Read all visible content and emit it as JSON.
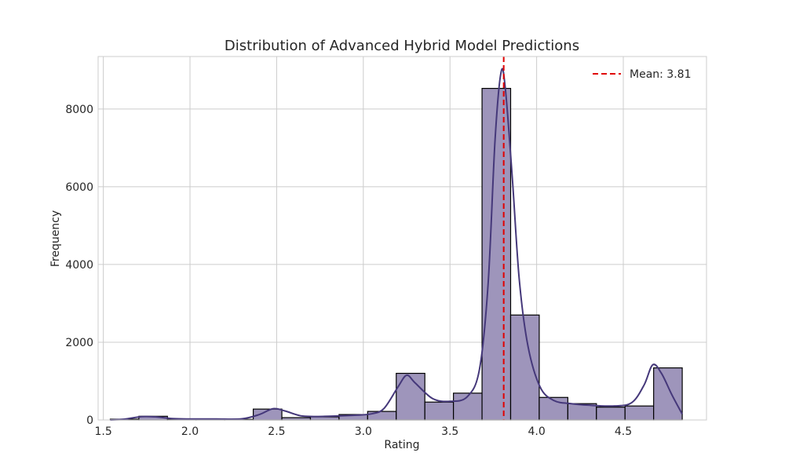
{
  "chart_data": {
    "type": "bar",
    "title": "Distribution of Advanced Hybrid Model Predictions",
    "xlabel": "Rating",
    "ylabel": "Frequency",
    "xlim": [
      1.47,
      4.98
    ],
    "ylim": [
      0,
      9350
    ],
    "xticks": [
      1.5,
      2.0,
      2.5,
      3.0,
      3.5,
      4.0,
      4.5
    ],
    "xtick_labels": [
      "1.5",
      "2.0",
      "2.5",
      "3.0",
      "3.5",
      "4.0",
      "4.5"
    ],
    "yticks": [
      0,
      2000,
      4000,
      6000,
      8000
    ],
    "ytick_labels": [
      "0",
      "2000",
      "4000",
      "6000",
      "8000"
    ],
    "grid": true,
    "legend_position": "top-right",
    "colors": {
      "bar_fill": "#9e95bb",
      "bar_edge": "#000000",
      "kde_line": "#45387a",
      "mean_line": "#e00000",
      "grid": "#cccccc",
      "spine": "#cccccc"
    },
    "bins": [
      {
        "start": 1.54,
        "end": 1.705,
        "count": 20
      },
      {
        "start": 1.705,
        "end": 1.87,
        "count": 95
      },
      {
        "start": 1.87,
        "end": 2.035,
        "count": 15
      },
      {
        "start": 2.035,
        "end": 2.2,
        "count": 10
      },
      {
        "start": 2.2,
        "end": 2.365,
        "count": 15
      },
      {
        "start": 2.365,
        "end": 2.53,
        "count": 280
      },
      {
        "start": 2.53,
        "end": 2.695,
        "count": 60
      },
      {
        "start": 2.695,
        "end": 2.86,
        "count": 80
      },
      {
        "start": 2.86,
        "end": 3.025,
        "count": 140
      },
      {
        "start": 3.025,
        "end": 3.19,
        "count": 220
      },
      {
        "start": 3.19,
        "end": 3.355,
        "count": 1200
      },
      {
        "start": 3.355,
        "end": 3.52,
        "count": 460
      },
      {
        "start": 3.52,
        "end": 3.685,
        "count": 690
      },
      {
        "start": 3.685,
        "end": 3.85,
        "count": 8530
      },
      {
        "start": 3.85,
        "end": 4.015,
        "count": 2700
      },
      {
        "start": 4.015,
        "end": 4.18,
        "count": 580
      },
      {
        "start": 4.18,
        "end": 4.345,
        "count": 420
      },
      {
        "start": 4.345,
        "end": 4.51,
        "count": 330
      },
      {
        "start": 4.51,
        "end": 4.675,
        "count": 360
      },
      {
        "start": 4.675,
        "end": 4.84,
        "count": 1340
      }
    ],
    "kde": [
      [
        1.54,
        0
      ],
      [
        1.62,
        20
      ],
      [
        1.72,
        85
      ],
      [
        1.8,
        80
      ],
      [
        1.9,
        35
      ],
      [
        2.0,
        25
      ],
      [
        2.15,
        25
      ],
      [
        2.3,
        30
      ],
      [
        2.4,
        140
      ],
      [
        2.48,
        290
      ],
      [
        2.55,
        230
      ],
      [
        2.65,
        100
      ],
      [
        2.8,
        95
      ],
      [
        2.95,
        120
      ],
      [
        3.05,
        160
      ],
      [
        3.12,
        300
      ],
      [
        3.2,
        850
      ],
      [
        3.25,
        1150
      ],
      [
        3.3,
        950
      ],
      [
        3.4,
        550
      ],
      [
        3.5,
        480
      ],
      [
        3.6,
        600
      ],
      [
        3.67,
        1300
      ],
      [
        3.72,
        3500
      ],
      [
        3.76,
        7200
      ],
      [
        3.795,
        8950
      ],
      [
        3.82,
        8500
      ],
      [
        3.86,
        6200
      ],
      [
        3.9,
        3600
      ],
      [
        3.95,
        1900
      ],
      [
        4.02,
        850
      ],
      [
        4.1,
        500
      ],
      [
        4.2,
        420
      ],
      [
        4.3,
        380
      ],
      [
        4.45,
        360
      ],
      [
        4.55,
        450
      ],
      [
        4.62,
        900
      ],
      [
        4.67,
        1420
      ],
      [
        4.72,
        1200
      ],
      [
        4.78,
        650
      ],
      [
        4.84,
        150
      ]
    ],
    "mean": 3.81,
    "legend": [
      {
        "label": "Mean: 3.81",
        "style": "dashed",
        "color": "#e00000"
      }
    ]
  }
}
